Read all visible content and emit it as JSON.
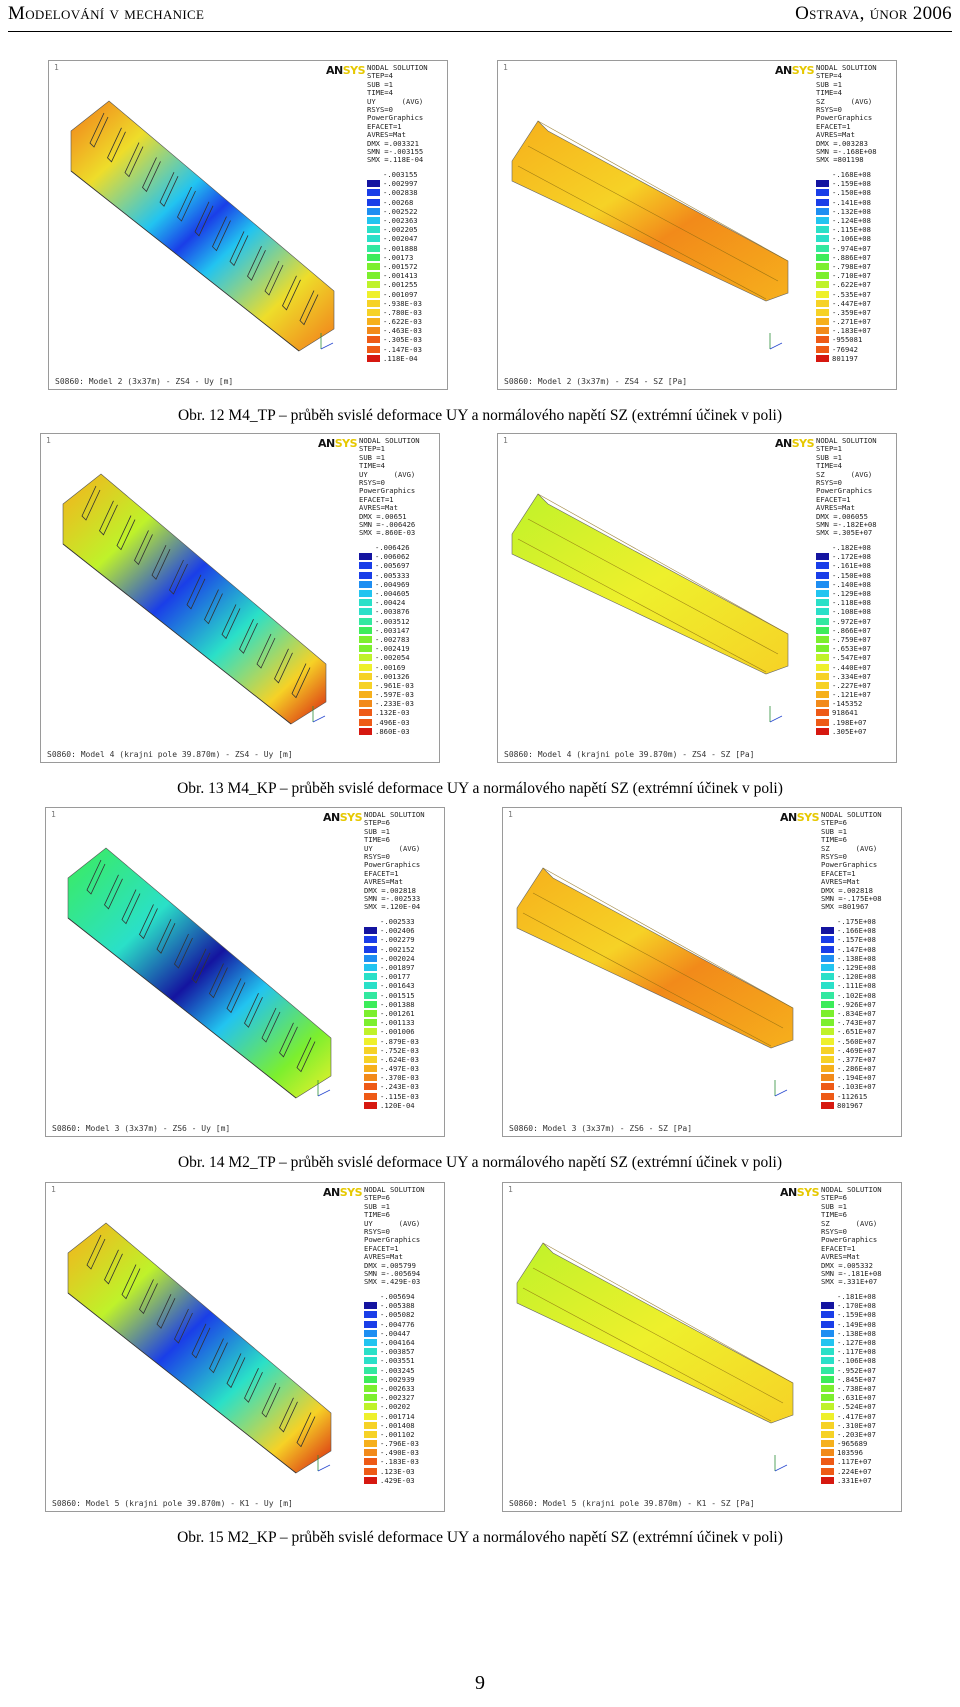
{
  "header": {
    "left": "Modelování v mechanice",
    "right": "Ostrava, únor 2006"
  },
  "logo": {
    "part1": "AN",
    "part2": "SYS"
  },
  "legend_colors": [
    "#1414a0",
    "#1a3ee8",
    "#1e8ef2",
    "#22c4f0",
    "#2ae0c8",
    "#32e8a0",
    "#3cec5a",
    "#7cef2e",
    "#bff22a",
    "#eef02c",
    "#f6d226",
    "#f6b01c",
    "#f28a1a",
    "#ee5a16",
    "#d61810"
  ],
  "figures": [
    {
      "title": "Obr. 12 M4_TP – průběh svislé deformace UY a normálového napětí SZ (extrémní účinek v poli)",
      "uy": {
        "info": [
          "NODAL SOLUTION",
          "STEP=4",
          "SUB =1",
          "TIME=4",
          "UY      (AVG)",
          "RSYS=0",
          "PowerGraphics",
          "EFACET=1",
          "AVRES=Mat",
          "DMX =.003321",
          "SMN =-.003155",
          "SMX =.118E-04"
        ],
        "legend": [
          "-.003155",
          "-.002997",
          "-.002838",
          "-.00268",
          "-.002522",
          "-.002363",
          "-.002205",
          "-.002047",
          "-.001888",
          "-.00173",
          "-.001572",
          "-.001413",
          "-.001255",
          "-.001097",
          "-.938E-03",
          "-.780E-03",
          "-.622E-03",
          "-.463E-03",
          "-.305E-03",
          "-.147E-03",
          ".118E-04"
        ],
        "footer": "S0860: Model 2 (3x37m) - ZS4 - Uy [m]",
        "number": "1"
      },
      "sz": {
        "info": [
          "NODAL SOLUTION",
          "STEP=4",
          "SUB =1",
          "TIME=4",
          "SZ      (AVG)",
          "RSYS=0",
          "PowerGraphics",
          "EFACET=1",
          "AVRES=Mat",
          "DMX =.003283",
          "SMN =-.168E+08",
          "SMX =801198"
        ],
        "legend": [
          "-.168E+08",
          "-.159E+08",
          "-.150E+08",
          "-.141E+08",
          "-.132E+08",
          "-.124E+08",
          "-.115E+08",
          "-.106E+08",
          "-.974E+07",
          "-.886E+07",
          "-.798E+07",
          "-.710E+07",
          "-.622E+07",
          "-.535E+07",
          "-.447E+07",
          "-.359E+07",
          "-.271E+07",
          "-.183E+07",
          "-955081",
          "-76942",
          "801197"
        ],
        "footer": "S0860: Model 2 (3x37m) - ZS4 - SZ [Pa]",
        "number": "1"
      }
    },
    {
      "title": "Obr. 13 M4_KP – průběh svislé deformace UY a normálového napětí SZ (extrémní účinek v poli)",
      "uy": {
        "info": [
          "NODAL SOLUTION",
          "STEP=1",
          "SUB =1",
          "TIME=4",
          "UY      (AVG)",
          "RSYS=0",
          "PowerGraphics",
          "EFACET=1",
          "AVRES=Mat",
          "DMX =.00651",
          "SMN =-.006426",
          "SMX =.860E-03"
        ],
        "legend": [
          "-.006426",
          "-.006062",
          "-.005697",
          "-.005333",
          "-.004969",
          "-.004605",
          "-.00424",
          "-.003876",
          "-.003512",
          "-.003147",
          "-.002783",
          "-.002419",
          "-.002054",
          "-.00169",
          "-.001326",
          "-.961E-03",
          "-.597E-03",
          "-.233E-03",
          ".132E-03",
          ".496E-03",
          ".860E-03"
        ],
        "footer": "S0860: Model 4 (krajni pole 39.870m) - ZS4 - Uy [m]",
        "number": "1"
      },
      "sz": {
        "info": [
          "NODAL SOLUTION",
          "STEP=1",
          "SUB =1",
          "TIME=4",
          "SZ      (AVG)",
          "RSYS=0",
          "PowerGraphics",
          "EFACET=1",
          "AVRES=Mat",
          "DMX =.006055",
          "SMN =-.182E+08",
          "SMX =.305E+07"
        ],
        "legend": [
          "-.182E+08",
          "-.172E+08",
          "-.161E+08",
          "-.150E+08",
          "-.140E+08",
          "-.129E+08",
          "-.118E+08",
          "-.108E+08",
          "-.972E+07",
          "-.866E+07",
          "-.759E+07",
          "-.653E+07",
          "-.547E+07",
          "-.440E+07",
          "-.334E+07",
          "-.227E+07",
          "-.121E+07",
          "-145352",
          "918641",
          ".198E+07",
          ".305E+07"
        ],
        "footer": "S0860: Model 4 (krajni pole 39.870m) - ZS4 - SZ [Pa]",
        "number": "1"
      }
    },
    {
      "title": "Obr. 14 M2_TP – průběh svislé deformace UY a normálového napětí SZ (extrémní účinek v poli)",
      "uy": {
        "info": [
          "NODAL SOLUTION",
          "STEP=6",
          "SUB =1",
          "TIME=6",
          "UY      (AVG)",
          "RSYS=0",
          "PowerGraphics",
          "EFACET=1",
          "AVRES=Mat",
          "DMX =.002818",
          "SMN =-.002533",
          "SMX =.120E-04"
        ],
        "legend": [
          "-.002533",
          "-.002406",
          "-.002279",
          "-.002152",
          "-.002024",
          "-.001897",
          "-.00177",
          "-.001643",
          "-.001515",
          "-.001388",
          "-.001261",
          "-.001133",
          "-.001006",
          "-.879E-03",
          "-.752E-03",
          "-.624E-03",
          "-.497E-03",
          "-.370E-03",
          "-.243E-03",
          "-.115E-03",
          ".120E-04"
        ],
        "footer": "S0860: Model 3 (3x37m) - ZS6 - Uy [m]",
        "number": "1"
      },
      "sz": {
        "info": [
          "NODAL SOLUTION",
          "STEP=6",
          "SUB =1",
          "TIME=6",
          "SZ      (AVG)",
          "RSYS=0",
          "PowerGraphics",
          "EFACET=1",
          "AVRES=Mat",
          "DMX =.002818",
          "SMN =-.175E+08",
          "SMX =801967"
        ],
        "legend": [
          "-.175E+08",
          "-.166E+08",
          "-.157E+08",
          "-.147E+08",
          "-.138E+08",
          "-.129E+08",
          "-.120E+08",
          "-.111E+08",
          "-.102E+08",
          "-.926E+07",
          "-.834E+07",
          "-.743E+07",
          "-.651E+07",
          "-.560E+07",
          "-.469E+07",
          "-.377E+07",
          "-.286E+07",
          "-.194E+07",
          "-.103E+07",
          "-112615",
          "801967"
        ],
        "footer": "S0860: Model 3 (3x37m) - ZS6 - SZ [Pa]",
        "number": "1"
      }
    },
    {
      "title": "Obr. 15 M2_KP – průběh svislé deformace UY a normálového napětí SZ (extrémní účinek v poli)",
      "uy": {
        "info": [
          "NODAL SOLUTION",
          "STEP=6",
          "SUB =1",
          "TIME=6",
          "UY      (AVG)",
          "RSYS=0",
          "PowerGraphics",
          "EFACET=1",
          "AVRES=Mat",
          "DMX =.005799",
          "SMN =-.005694",
          "SMX =.429E-03"
        ],
        "legend": [
          "-.005694",
          "-.005388",
          "-.005082",
          "-.004776",
          "-.00447",
          "-.004164",
          "-.003857",
          "-.003551",
          "-.003245",
          "-.002939",
          "-.002633",
          "-.002327",
          "-.00202",
          "-.001714",
          "-.001408",
          "-.001102",
          "-.796E-03",
          "-.490E-03",
          "-.183E-03",
          ".123E-03",
          ".429E-03"
        ],
        "footer": "S0860: Model 5 (krajni pole 39.870m) - K1 - Uy [m]",
        "number": "1"
      },
      "sz": {
        "info": [
          "NODAL SOLUTION",
          "STEP=6",
          "SUB =1",
          "TIME=6",
          "SZ      (AVG)",
          "RSYS=0",
          "PowerGraphics",
          "EFACET=1",
          "AVRES=Mat",
          "DMX =.005332",
          "SMN =-.181E+08",
          "SMX =.331E+07"
        ],
        "legend": [
          "-.181E+08",
          "-.170E+08",
          "-.159E+08",
          "-.149E+08",
          "-.138E+08",
          "-.127E+08",
          "-.117E+08",
          "-.106E+08",
          "-.952E+07",
          "-.845E+07",
          "-.738E+07",
          "-.631E+07",
          "-.524E+07",
          "-.417E+07",
          "-.310E+07",
          "-.203E+07",
          "-965689",
          "103596",
          ".117E+07",
          ".224E+07",
          ".331E+07"
        ],
        "footer": "S0860: Model 5 (krajni pole 39.870m) - K1 - SZ [Pa]",
        "number": "1"
      }
    }
  ],
  "page_number": "9"
}
